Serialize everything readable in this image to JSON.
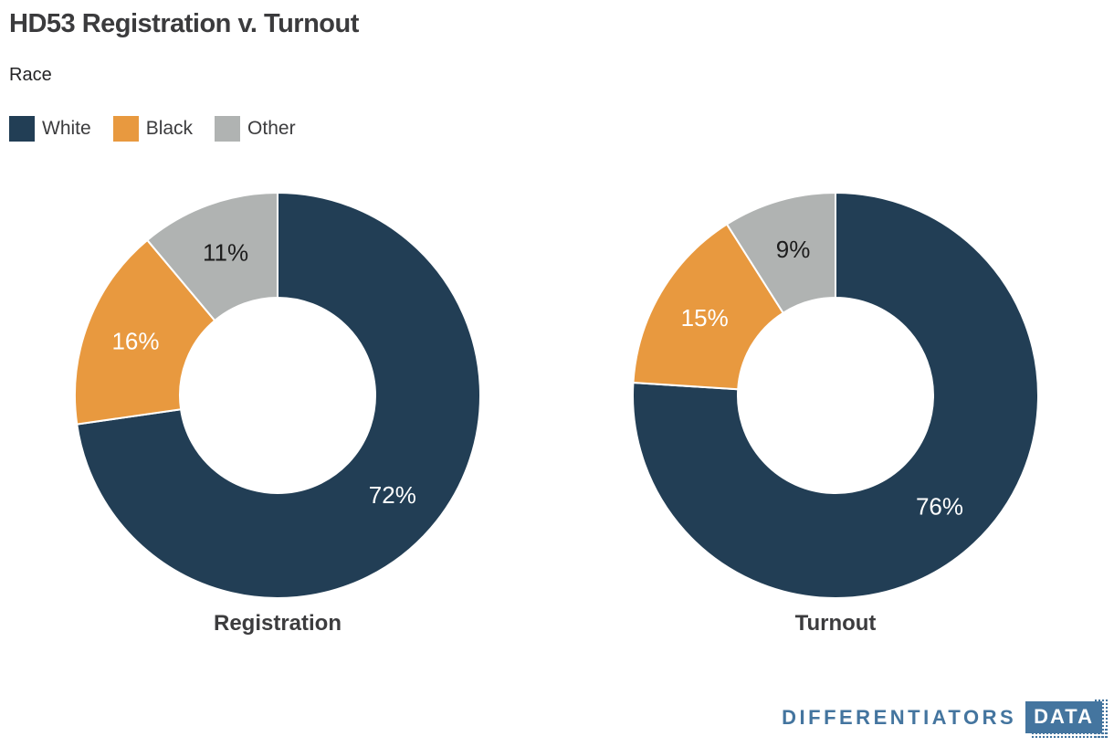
{
  "header": {
    "title": "HD53 Registration v. Turnout",
    "subtitle": "Race"
  },
  "legend": {
    "items": [
      {
        "label": "White",
        "color": "#223e55"
      },
      {
        "label": "Black",
        "color": "#e8993f"
      },
      {
        "label": "Other",
        "color": "#b0b3b2"
      }
    ]
  },
  "chart_data": [
    {
      "type": "pie",
      "variant": "donut",
      "title": "Registration",
      "categories": [
        "White",
        "Black",
        "Other"
      ],
      "values": [
        72,
        16,
        11
      ],
      "value_labels": [
        "72%",
        "16%",
        "11%"
      ],
      "colors": [
        "#223e55",
        "#e8993f",
        "#b0b3b2"
      ],
      "label_colors": [
        "#ffffff",
        "#ffffff",
        "#1c1c1c"
      ],
      "start_angle_deg": 0,
      "direction": "clockwise",
      "inner_radius_ratio": 0.48,
      "separator_color": "#ffffff",
      "legend_position": "top-left"
    },
    {
      "type": "pie",
      "variant": "donut",
      "title": "Turnout",
      "categories": [
        "White",
        "Black",
        "Other"
      ],
      "values": [
        76,
        15,
        9
      ],
      "value_labels": [
        "76%",
        "15%",
        "9%"
      ],
      "colors": [
        "#223e55",
        "#e8993f",
        "#b0b3b2"
      ],
      "label_colors": [
        "#ffffff",
        "#ffffff",
        "#1c1c1c"
      ],
      "start_angle_deg": 0,
      "direction": "clockwise",
      "inner_radius_ratio": 0.48,
      "separator_color": "#ffffff",
      "legend_position": "top-left"
    }
  ],
  "footer": {
    "brand_text": "DIFFERENTIATORS",
    "brand_badge": "DATA",
    "brand_color": "#44759f"
  }
}
